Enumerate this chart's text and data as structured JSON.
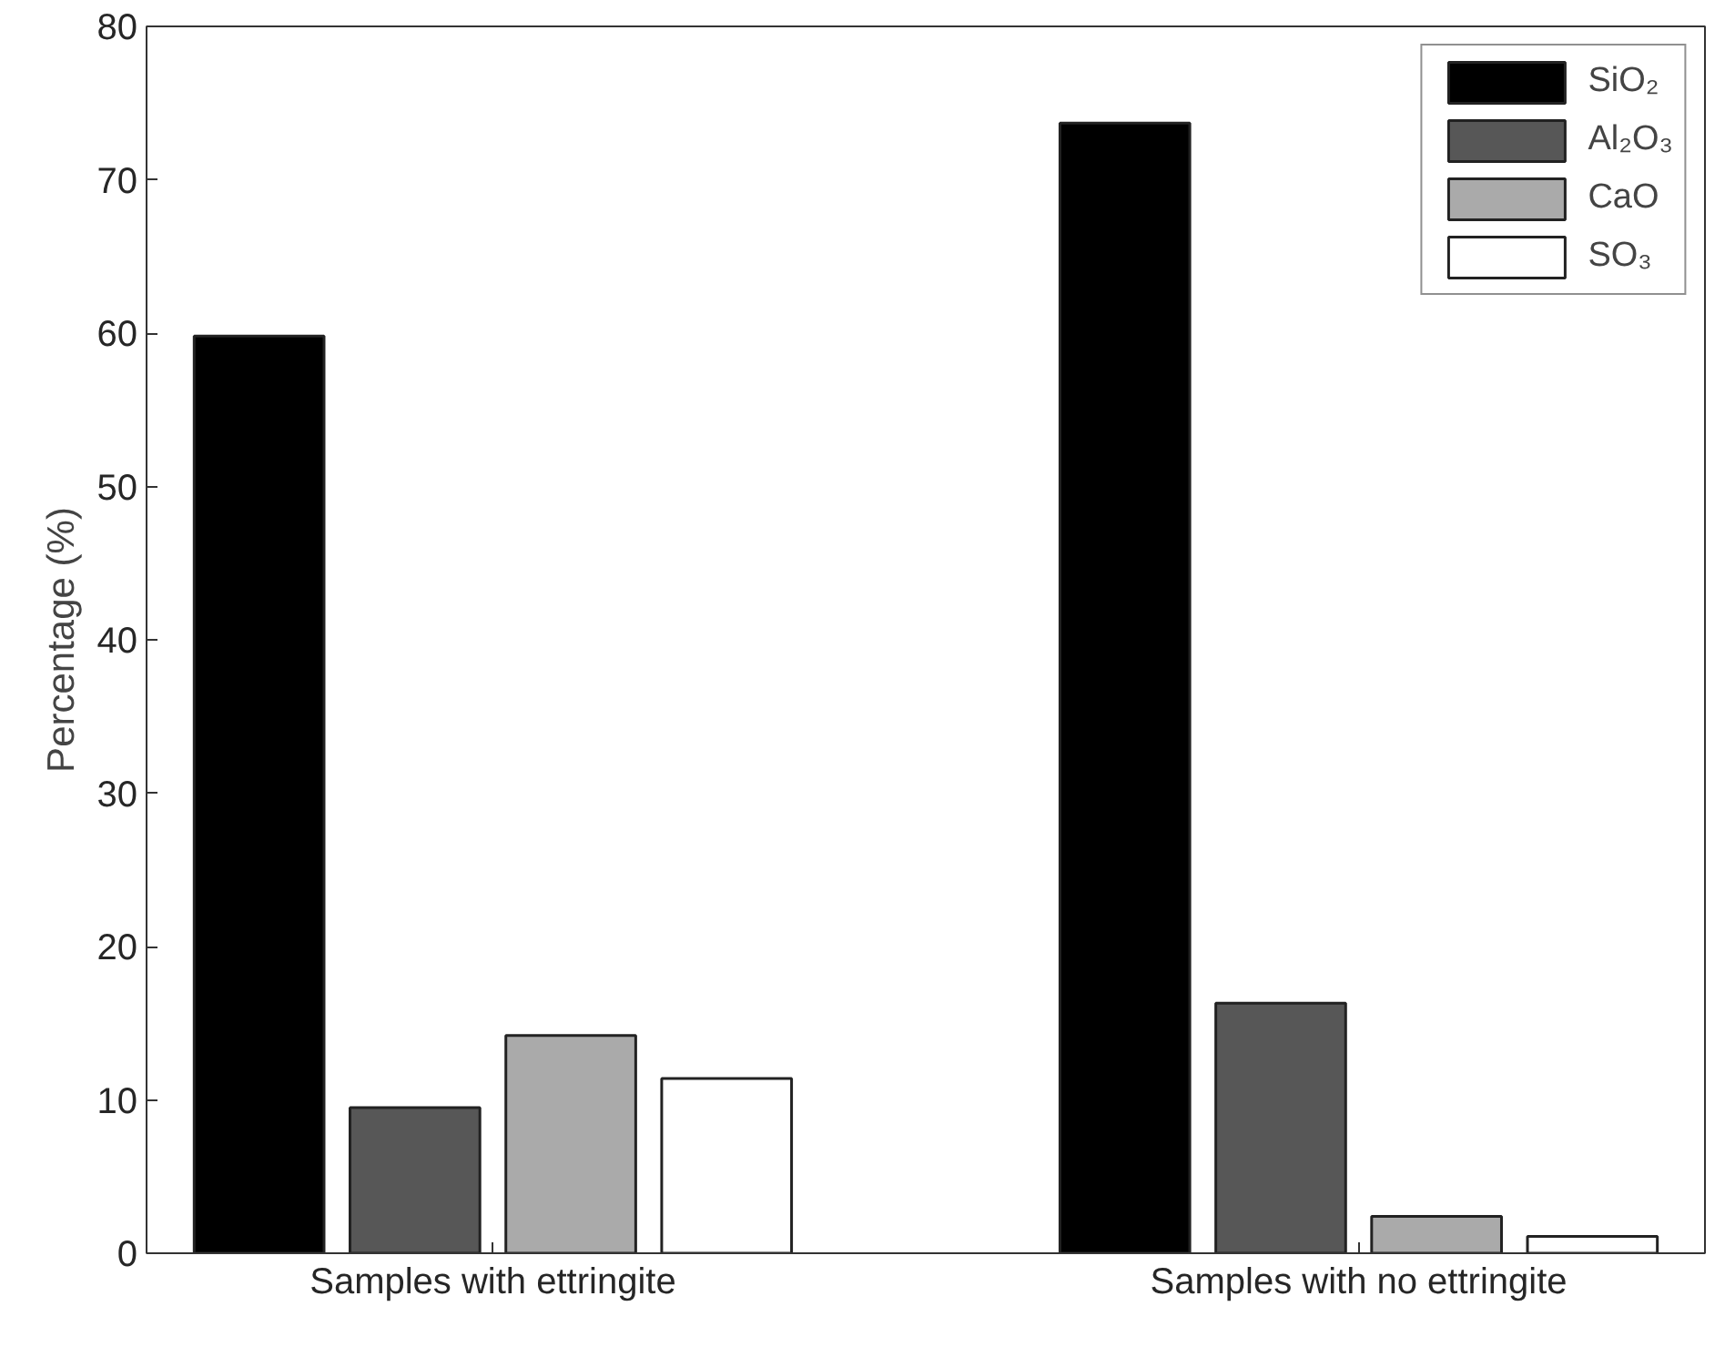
{
  "chart_data": {
    "type": "bar",
    "ylabel": "Percentage (%)",
    "categories": [
      "Samples with ettringite",
      "Samples with no ettringite"
    ],
    "series": [
      {
        "name": "SiO₂",
        "color": "#000000",
        "values": [
          59.8,
          73.7
        ]
      },
      {
        "name": "Al₂O₃",
        "color": "#575757",
        "values": [
          9.5,
          16.3
        ]
      },
      {
        "name": "CaO",
        "color": "#aaaaaa",
        "values": [
          14.2,
          2.4
        ]
      },
      {
        "name": "SO₃",
        "color": "#ffffff",
        "values": [
          11.4,
          1.1
        ]
      }
    ],
    "ylim": [
      0,
      80
    ],
    "yticks": [
      0,
      10,
      20,
      30,
      40,
      50,
      60,
      70,
      80
    ],
    "grid": false,
    "legend": "top right"
  }
}
